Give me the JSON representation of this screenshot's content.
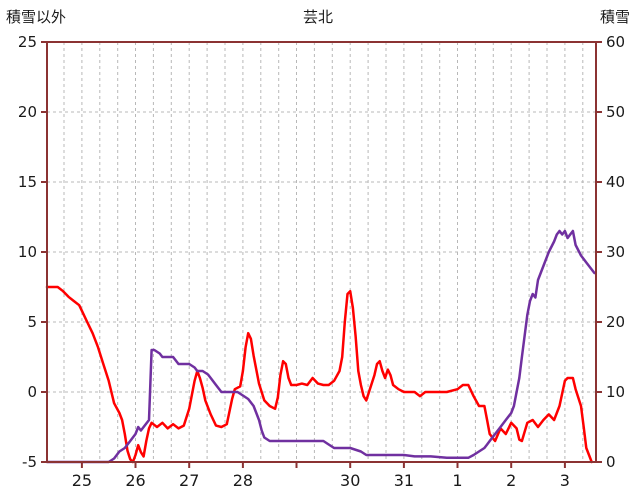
{
  "header": {
    "left_axis_title": "積雪以外",
    "title": "芸北",
    "right_axis_title": "積雪"
  },
  "colors": {
    "temp_line": "#ff0000",
    "snow_line": "#7030a0",
    "frame": "#8b3333",
    "grid": "#b8b8b8",
    "text": "#1a1a1a"
  },
  "chart_data": {
    "type": "line",
    "title": "芸北",
    "left_axis": {
      "label": "積雪以外",
      "min": -5,
      "max": 25,
      "ticks": [
        25,
        20,
        15,
        10,
        5,
        0,
        -5
      ]
    },
    "right_axis": {
      "label": "積雪",
      "min": 0,
      "max": 60,
      "ticks": [
        60,
        50,
        40,
        30,
        20,
        10,
        0
      ]
    },
    "x_axis": {
      "min": 24.35,
      "max": 34.58,
      "tick_days": [
        25,
        26,
        27,
        28,
        29,
        30,
        31,
        32,
        33,
        34
      ],
      "tick_labels": [
        "25",
        "26",
        "27",
        "28",
        "",
        "30",
        "31",
        "1",
        "2",
        "3"
      ],
      "minor_grid_step_days": 0.33333
    },
    "grid": {
      "dashed": true
    },
    "legend": "none",
    "series": [
      {
        "name": "積雪以外",
        "axis": "left",
        "color": "#ff0000",
        "points": [
          [
            24.35,
            7.5
          ],
          [
            24.55,
            7.5
          ],
          [
            24.65,
            7.2
          ],
          [
            24.75,
            6.8
          ],
          [
            24.85,
            6.5
          ],
          [
            24.95,
            6.2
          ],
          [
            25.0,
            5.8
          ],
          [
            25.1,
            5.0
          ],
          [
            25.2,
            4.2
          ],
          [
            25.3,
            3.2
          ],
          [
            25.4,
            2.0
          ],
          [
            25.5,
            0.8
          ],
          [
            25.55,
            0.0
          ],
          [
            25.6,
            -0.8
          ],
          [
            25.7,
            -1.5
          ],
          [
            25.75,
            -2.0
          ],
          [
            25.8,
            -3.0
          ],
          [
            25.85,
            -4.2
          ],
          [
            25.9,
            -4.8
          ],
          [
            25.95,
            -5.0
          ],
          [
            26.0,
            -4.5
          ],
          [
            26.05,
            -3.8
          ],
          [
            26.1,
            -4.3
          ],
          [
            26.15,
            -4.6
          ],
          [
            26.2,
            -3.5
          ],
          [
            26.25,
            -2.6
          ],
          [
            26.3,
            -2.2
          ],
          [
            26.4,
            -2.5
          ],
          [
            26.5,
            -2.2
          ],
          [
            26.6,
            -2.6
          ],
          [
            26.7,
            -2.3
          ],
          [
            26.8,
            -2.6
          ],
          [
            26.9,
            -2.4
          ],
          [
            27.0,
            -1.2
          ],
          [
            27.05,
            -0.2
          ],
          [
            27.1,
            0.8
          ],
          [
            27.15,
            1.5
          ],
          [
            27.2,
            1.0
          ],
          [
            27.25,
            0.3
          ],
          [
            27.3,
            -0.6
          ],
          [
            27.4,
            -1.6
          ],
          [
            27.5,
            -2.4
          ],
          [
            27.6,
            -2.5
          ],
          [
            27.7,
            -2.3
          ],
          [
            27.8,
            -0.5
          ],
          [
            27.85,
            0.2
          ],
          [
            27.95,
            0.4
          ],
          [
            28.0,
            1.5
          ],
          [
            28.05,
            3.2
          ],
          [
            28.1,
            4.2
          ],
          [
            28.15,
            3.8
          ],
          [
            28.2,
            2.6
          ],
          [
            28.3,
            0.6
          ],
          [
            28.4,
            -0.6
          ],
          [
            28.5,
            -1.0
          ],
          [
            28.6,
            -1.2
          ],
          [
            28.65,
            -0.4
          ],
          [
            28.7,
            1.2
          ],
          [
            28.75,
            2.2
          ],
          [
            28.8,
            2.0
          ],
          [
            28.85,
            1.0
          ],
          [
            28.9,
            0.5
          ],
          [
            29.0,
            0.5
          ],
          [
            29.1,
            0.6
          ],
          [
            29.2,
            0.5
          ],
          [
            29.3,
            1.0
          ],
          [
            29.4,
            0.6
          ],
          [
            29.5,
            0.5
          ],
          [
            29.6,
            0.5
          ],
          [
            29.7,
            0.8
          ],
          [
            29.8,
            1.5
          ],
          [
            29.85,
            2.5
          ],
          [
            29.9,
            5.0
          ],
          [
            29.95,
            7.0
          ],
          [
            30.0,
            7.2
          ],
          [
            30.05,
            6.0
          ],
          [
            30.1,
            4.0
          ],
          [
            30.15,
            1.5
          ],
          [
            30.2,
            0.5
          ],
          [
            30.25,
            -0.3
          ],
          [
            30.3,
            -0.6
          ],
          [
            30.35,
            0.0
          ],
          [
            30.45,
            1.2
          ],
          [
            30.5,
            2.0
          ],
          [
            30.55,
            2.2
          ],
          [
            30.6,
            1.5
          ],
          [
            30.65,
            1.0
          ],
          [
            30.7,
            1.6
          ],
          [
            30.75,
            1.2
          ],
          [
            30.8,
            0.5
          ],
          [
            30.9,
            0.2
          ],
          [
            31.0,
            0.0
          ],
          [
            31.2,
            0.0
          ],
          [
            31.3,
            -0.3
          ],
          [
            31.4,
            0.0
          ],
          [
            31.6,
            0.0
          ],
          [
            31.8,
            0.0
          ],
          [
            32.0,
            0.2
          ],
          [
            32.1,
            0.5
          ],
          [
            32.2,
            0.5
          ],
          [
            32.3,
            -0.3
          ],
          [
            32.4,
            -1.0
          ],
          [
            32.5,
            -1.0
          ],
          [
            32.55,
            -2.0
          ],
          [
            32.6,
            -3.0
          ],
          [
            32.7,
            -3.5
          ],
          [
            32.8,
            -2.6
          ],
          [
            32.9,
            -3.0
          ],
          [
            33.0,
            -2.2
          ],
          [
            33.1,
            -2.6
          ],
          [
            33.15,
            -3.4
          ],
          [
            33.2,
            -3.5
          ],
          [
            33.3,
            -2.2
          ],
          [
            33.4,
            -2.0
          ],
          [
            33.5,
            -2.5
          ],
          [
            33.6,
            -2.0
          ],
          [
            33.7,
            -1.6
          ],
          [
            33.8,
            -2.0
          ],
          [
            33.9,
            -1.0
          ],
          [
            34.0,
            0.8
          ],
          [
            34.05,
            1.0
          ],
          [
            34.15,
            1.0
          ],
          [
            34.2,
            0.2
          ],
          [
            34.3,
            -1.0
          ],
          [
            34.35,
            -2.5
          ],
          [
            34.4,
            -4.0
          ],
          [
            34.5,
            -5.0
          ]
        ]
      },
      {
        "name": "積雪",
        "axis": "right",
        "color": "#7030a0",
        "points": [
          [
            24.35,
            0
          ],
          [
            25.5,
            0
          ],
          [
            25.6,
            0.5
          ],
          [
            25.7,
            1.5
          ],
          [
            25.8,
            2
          ],
          [
            25.9,
            3
          ],
          [
            26.0,
            4
          ],
          [
            26.05,
            5
          ],
          [
            26.1,
            4.5
          ],
          [
            26.15,
            5
          ],
          [
            26.2,
            5.5
          ],
          [
            26.25,
            6
          ],
          [
            26.3,
            16
          ],
          [
            26.35,
            16
          ],
          [
            26.45,
            15.5
          ],
          [
            26.5,
            15
          ],
          [
            26.6,
            15
          ],
          [
            26.7,
            15
          ],
          [
            26.75,
            14.5
          ],
          [
            26.8,
            14
          ],
          [
            26.9,
            14
          ],
          [
            27.0,
            14
          ],
          [
            27.1,
            13.5
          ],
          [
            27.15,
            13
          ],
          [
            27.25,
            13
          ],
          [
            27.35,
            12.5
          ],
          [
            27.4,
            12
          ],
          [
            27.5,
            11
          ],
          [
            27.55,
            10.5
          ],
          [
            27.6,
            10
          ],
          [
            27.7,
            10
          ],
          [
            27.8,
            10
          ],
          [
            27.9,
            10
          ],
          [
            28.0,
            9.5
          ],
          [
            28.1,
            9
          ],
          [
            28.2,
            8
          ],
          [
            28.3,
            6
          ],
          [
            28.35,
            4.5
          ],
          [
            28.4,
            3.5
          ],
          [
            28.5,
            3
          ],
          [
            28.6,
            3
          ],
          [
            28.8,
            3
          ],
          [
            29.0,
            3
          ],
          [
            29.2,
            3
          ],
          [
            29.4,
            3
          ],
          [
            29.5,
            3
          ],
          [
            29.6,
            2.5
          ],
          [
            29.7,
            2
          ],
          [
            29.8,
            2
          ],
          [
            30.0,
            2
          ],
          [
            30.2,
            1.5
          ],
          [
            30.3,
            1
          ],
          [
            30.5,
            1
          ],
          [
            30.7,
            1
          ],
          [
            31.0,
            1
          ],
          [
            31.2,
            0.8
          ],
          [
            31.5,
            0.8
          ],
          [
            31.8,
            0.6
          ],
          [
            32.0,
            0.6
          ],
          [
            32.2,
            0.6
          ],
          [
            32.3,
            1
          ],
          [
            32.4,
            1.5
          ],
          [
            32.5,
            2
          ],
          [
            32.55,
            2.5
          ],
          [
            32.6,
            3
          ],
          [
            32.7,
            4
          ],
          [
            32.8,
            5
          ],
          [
            32.9,
            6
          ],
          [
            33.0,
            7
          ],
          [
            33.05,
            8
          ],
          [
            33.1,
            10
          ],
          [
            33.15,
            12
          ],
          [
            33.2,
            15
          ],
          [
            33.25,
            18
          ],
          [
            33.3,
            21
          ],
          [
            33.35,
            23
          ],
          [
            33.4,
            24
          ],
          [
            33.45,
            23.5
          ],
          [
            33.5,
            26
          ],
          [
            33.55,
            27
          ],
          [
            33.6,
            28
          ],
          [
            33.7,
            30
          ],
          [
            33.8,
            31.5
          ],
          [
            33.85,
            32.5
          ],
          [
            33.9,
            33
          ],
          [
            33.95,
            32.5
          ],
          [
            34.0,
            33
          ],
          [
            34.05,
            32
          ],
          [
            34.1,
            32.5
          ],
          [
            34.15,
            33
          ],
          [
            34.2,
            31
          ],
          [
            34.3,
            29.5
          ],
          [
            34.4,
            28.5
          ],
          [
            34.5,
            27.5
          ],
          [
            34.55,
            27
          ]
        ]
      }
    ]
  }
}
